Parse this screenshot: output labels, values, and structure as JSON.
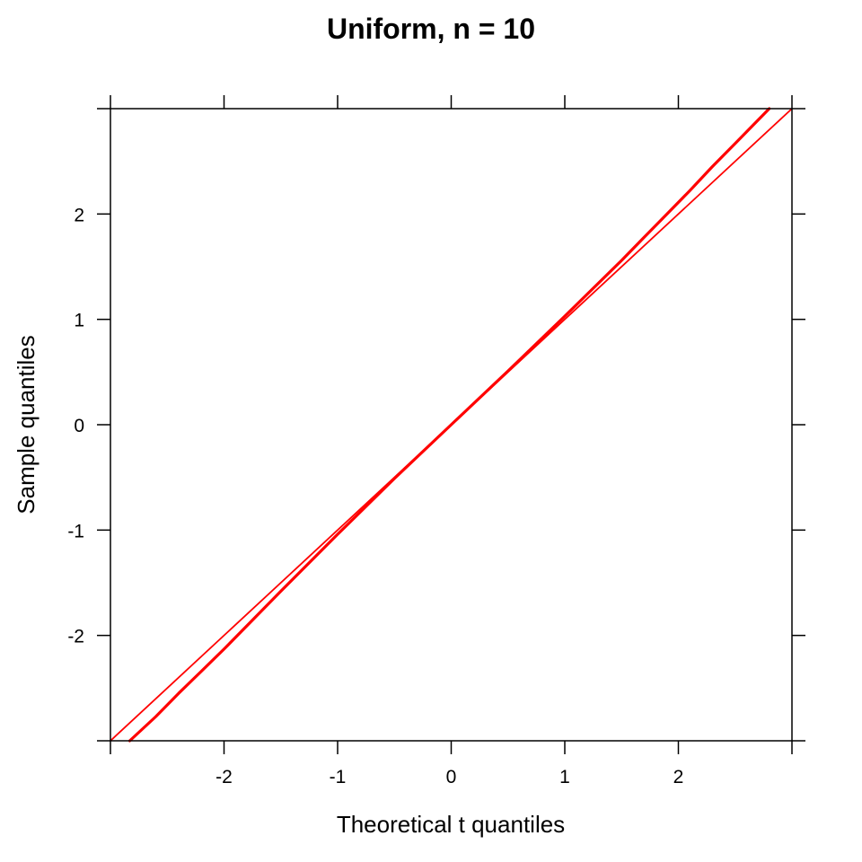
{
  "chart_data": {
    "type": "line",
    "title": "Uniform, n = 10",
    "xlabel": "Theoretical t quantiles",
    "ylabel": "Sample quantiles",
    "xlim": [
      -3,
      3
    ],
    "ylim": [
      -3,
      3
    ],
    "x_ticks": [
      -2,
      -1,
      0,
      1,
      2
    ],
    "y_ticks": [
      -2,
      -1,
      0,
      1,
      2
    ],
    "x_tick_labels": [
      "-2",
      "-1",
      "0",
      "1",
      "2"
    ],
    "y_tick_labels": [
      "-2",
      "-1",
      "0",
      "1",
      "2"
    ],
    "x_tick_positions": [
      -3,
      -2,
      -1,
      0,
      1,
      2,
      3
    ],
    "y_tick_positions": [
      -3,
      -2,
      -1,
      0,
      1,
      2,
      3
    ],
    "grid": false,
    "line_color": "#ff0000",
    "reference_line": {
      "x": [
        -3,
        3
      ],
      "y": [
        -3,
        3
      ]
    },
    "series": [
      {
        "x": [
          -2.83,
          -2.6,
          -2.4,
          -2.2,
          -2.0,
          -1.5,
          -1.0,
          -0.5,
          0.0,
          0.5,
          1.0,
          1.5,
          1.7,
          1.9,
          2.1,
          2.3,
          2.5,
          2.7,
          2.8
        ],
        "y": [
          -3.0,
          -2.77,
          -2.55,
          -2.34,
          -2.13,
          -1.58,
          -1.04,
          -0.51,
          0.0,
          0.51,
          1.03,
          1.56,
          1.78,
          2.0,
          2.22,
          2.45,
          2.67,
          2.89,
          3.0
        ]
      }
    ]
  }
}
